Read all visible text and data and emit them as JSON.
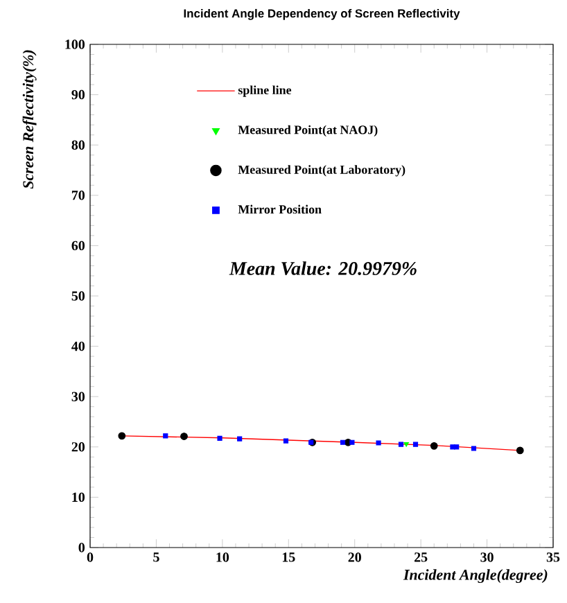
{
  "chart_data": {
    "type": "scatter",
    "title": "Incident Angle Dependency of Screen Reflectivity",
    "xlabel": "Incident Angle(degree)",
    "ylabel": "Screen Reflectivity(%)",
    "xlim": [
      0,
      35
    ],
    "ylim": [
      0,
      100
    ],
    "xticks": [
      0,
      5,
      10,
      15,
      20,
      25,
      30,
      35
    ],
    "yticks": [
      0,
      10,
      20,
      30,
      40,
      50,
      60,
      70,
      80,
      90,
      100
    ],
    "grid": false,
    "legend": "top",
    "annotations": [
      "Mean Value:   20.9979%"
    ],
    "series": [
      {
        "name": "spline line",
        "type": "line",
        "color": "#ff0000",
        "marker": "none",
        "x": [
          2.4,
          10,
          20,
          26,
          32.5
        ],
        "values": [
          22.2,
          21.8,
          20.9,
          20.3,
          19.3
        ]
      },
      {
        "name": "Measured Point(at NAOJ)",
        "color": "#00ff00",
        "marker": "triangle",
        "x": [
          23.9
        ],
        "values": [
          20.6
        ]
      },
      {
        "name": "Measured Point(at Laboratory)",
        "color": "#000000",
        "marker": "circle",
        "x": [
          2.4,
          7.1,
          16.8,
          19.5,
          26.0,
          32.5
        ],
        "values": [
          22.2,
          22.1,
          20.9,
          20.9,
          20.2,
          19.3
        ]
      },
      {
        "name": "Mirror Position",
        "color": "#0000ff",
        "marker": "square",
        "x": [
          5.7,
          9.8,
          11.3,
          14.8,
          16.7,
          19.1,
          19.8,
          21.8,
          23.5,
          24.6,
          27.4,
          27.7,
          29.0
        ],
        "values": [
          22.2,
          21.7,
          21.6,
          21.2,
          20.9,
          20.9,
          20.9,
          20.8,
          20.5,
          20.5,
          20.0,
          20.0,
          19.7
        ]
      }
    ]
  }
}
